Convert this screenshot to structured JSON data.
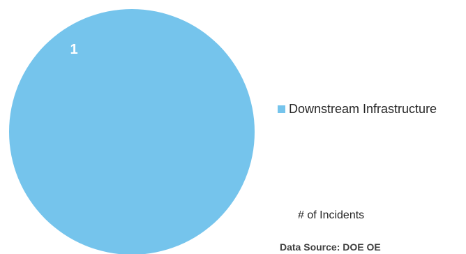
{
  "chart_data": {
    "type": "pie",
    "slices": [
      {
        "label": "Downstream Infrastructure",
        "value": 1,
        "data_label": "1",
        "color": "#75c4ec"
      }
    ],
    "legend": {
      "position": "right",
      "entries": [
        "Downstream Infrastructure"
      ]
    }
  },
  "measure_label": "# of Incidents",
  "source_label": "Data Source: DOE OE",
  "colors": {
    "slice": "#75c4ec",
    "data_label": "#ffffff",
    "text": "#262626"
  }
}
